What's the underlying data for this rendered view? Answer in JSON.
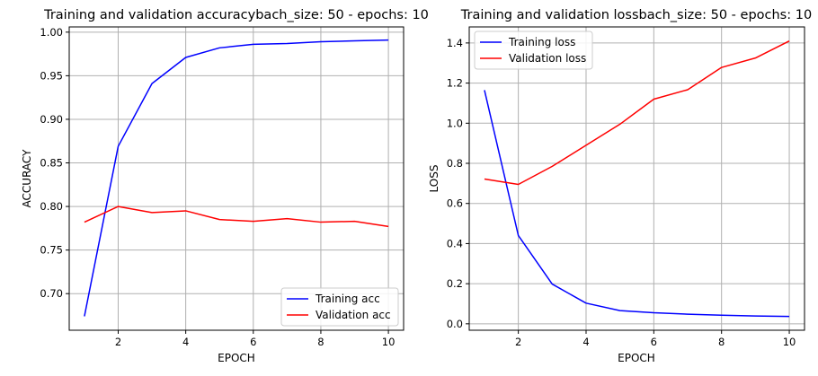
{
  "chart_data": [
    {
      "type": "line",
      "title": "Training and validation accuracybach_size: 50 - epochs: 10",
      "xlabel": "EPOCH",
      "ylabel": "ACCURACY",
      "x": [
        1,
        2,
        3,
        4,
        5,
        6,
        7,
        8,
        9,
        10
      ],
      "xlim": [
        0.55,
        10.45
      ],
      "ylim": [
        0.658,
        1.006
      ],
      "xticks": [
        2,
        4,
        6,
        8,
        10
      ],
      "yticks": [
        0.7,
        0.75,
        0.8,
        0.85,
        0.9,
        0.95,
        1.0
      ],
      "ytick_decimals": 2,
      "grid": true,
      "legend_position": "lower-right",
      "series": [
        {
          "name": "Training acc",
          "color": "#0000ff",
          "values": [
            0.674,
            0.869,
            0.941,
            0.971,
            0.982,
            0.986,
            0.987,
            0.989,
            0.99,
            0.991
          ]
        },
        {
          "name": "Validation acc",
          "color": "#ff0000",
          "values": [
            0.782,
            0.8,
            0.793,
            0.795,
            0.785,
            0.783,
            0.786,
            0.782,
            0.783,
            0.777
          ]
        }
      ]
    },
    {
      "type": "line",
      "title": "Training and validation lossbach_size: 50 - epochs: 10",
      "xlabel": "EPOCH",
      "ylabel": "LOSS",
      "x": [
        1,
        2,
        3,
        4,
        5,
        6,
        7,
        8,
        9,
        10
      ],
      "xlim": [
        0.55,
        10.45
      ],
      "ylim": [
        -0.032,
        1.48
      ],
      "xticks": [
        2,
        4,
        6,
        8,
        10
      ],
      "yticks": [
        0.0,
        0.2,
        0.4,
        0.6,
        0.8,
        1.0,
        1.2,
        1.4
      ],
      "ytick_decimals": 1,
      "grid": true,
      "legend_position": "upper-left",
      "series": [
        {
          "name": "Training loss",
          "color": "#0000ff",
          "values": [
            1.165,
            0.44,
            0.198,
            0.103,
            0.066,
            0.055,
            0.048,
            0.043,
            0.039,
            0.037
          ]
        },
        {
          "name": "Validation loss",
          "color": "#ff0000",
          "values": [
            0.722,
            0.695,
            0.785,
            0.89,
            0.995,
            1.12,
            1.167,
            1.278,
            1.325,
            1.41
          ]
        }
      ]
    }
  ]
}
